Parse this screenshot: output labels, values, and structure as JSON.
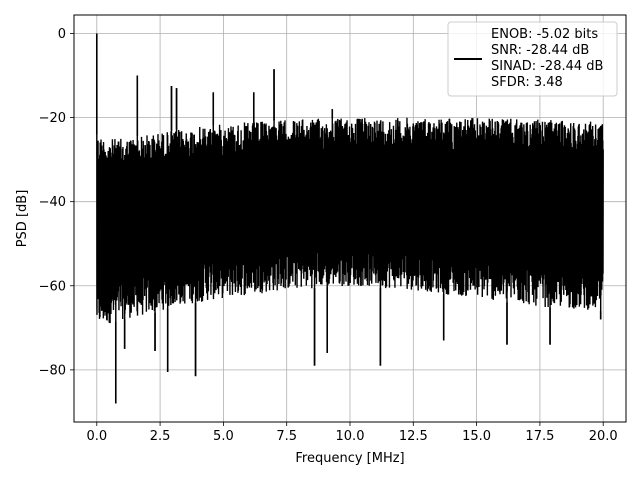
{
  "chart_data": {
    "type": "line",
    "xlabel": "Frequency [MHz]",
    "ylabel": "PSD [dB]",
    "xlim": [
      -0.9,
      20.9
    ],
    "ylim": [
      -92.4,
      4.4
    ],
    "xticks": [
      0.0,
      2.5,
      5.0,
      7.5,
      10.0,
      12.5,
      15.0,
      17.5,
      20.0
    ],
    "xtick_labels": [
      "0.0",
      "2.5",
      "5.0",
      "7.5",
      "10.0",
      "12.5",
      "15.0",
      "17.5",
      "20.0"
    ],
    "yticks": [
      0,
      -20,
      -40,
      -60,
      -80
    ],
    "ytick_labels": [
      "0",
      "−20",
      "−40",
      "−60",
      "−80"
    ],
    "grid": true,
    "legend_position": "top-right",
    "line_color": "#000000",
    "series": [
      {
        "name": "ENOB: -5.02 bits\nSNR: -28.44 dB\nSINAD: -28.44 dB\nSFDR: 3.48",
        "noise_envelope": {
          "x": [
            0.0,
            0.5,
            1.0,
            2.0,
            3.0,
            5.0,
            7.5,
            10.0,
            12.5,
            15.0,
            17.5,
            20.0
          ],
          "upper": [
            -24.0,
            -25.0,
            -25.0,
            -24.0,
            -23.0,
            -21.5,
            -20.5,
            -20.0,
            -20.0,
            -20.0,
            -20.5,
            -21.0
          ],
          "lower": [
            -70.0,
            -69.0,
            -68.0,
            -67.0,
            -65.0,
            -63.0,
            -61.0,
            -60.0,
            -61.0,
            -63.0,
            -65.0,
            -66.0
          ]
        },
        "peaks": [
          {
            "x": 0.0,
            "y": 0.0
          },
          {
            "x": 1.6,
            "y": -10.0
          },
          {
            "x": 2.95,
            "y": -12.5
          },
          {
            "x": 3.15,
            "y": -13.0
          },
          {
            "x": 4.6,
            "y": -14.0
          },
          {
            "x": 6.2,
            "y": -14.0
          },
          {
            "x": 7.0,
            "y": -8.5
          },
          {
            "x": 9.3,
            "y": -18.0
          }
        ],
        "dips": [
          {
            "x": 0.75,
            "y": -88.0
          },
          {
            "x": 2.8,
            "y": -80.5
          },
          {
            "x": 3.9,
            "y": -81.5
          },
          {
            "x": 8.6,
            "y": -79.0
          },
          {
            "x": 11.2,
            "y": -79.0
          },
          {
            "x": 1.1,
            "y": -75.0
          },
          {
            "x": 2.3,
            "y": -75.5
          },
          {
            "x": 9.1,
            "y": -76.0
          },
          {
            "x": 13.7,
            "y": -73.0
          },
          {
            "x": 16.2,
            "y": -74.0
          },
          {
            "x": 17.9,
            "y": -74.0
          },
          {
            "x": 19.9,
            "y": -68.0
          }
        ]
      }
    ]
  }
}
